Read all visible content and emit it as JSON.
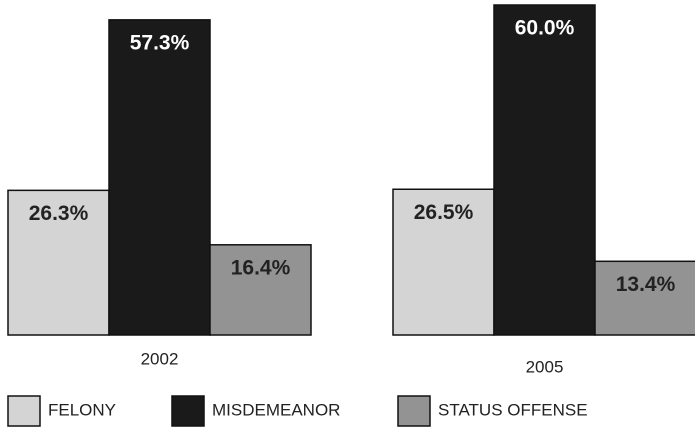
{
  "chart_data": {
    "type": "bar",
    "categories": [
      "2002",
      "2005"
    ],
    "series": [
      {
        "name": "FELONY",
        "color": "#d4d4d4",
        "values": [
          26.3,
          26.5
        ],
        "value_labels": [
          "26.3%",
          "26.5%"
        ]
      },
      {
        "name": "MISDEMEANOR",
        "color": "#1a1a1a",
        "values": [
          57.3,
          60.0
        ],
        "value_labels": [
          "57.3%",
          "60.0%"
        ]
      },
      {
        "name": "STATUS OFFENSE",
        "color": "#939393",
        "values": [
          16.4,
          13.4
        ],
        "value_labels": [
          "16.4%",
          "13.4%"
        ]
      }
    ]
  }
}
